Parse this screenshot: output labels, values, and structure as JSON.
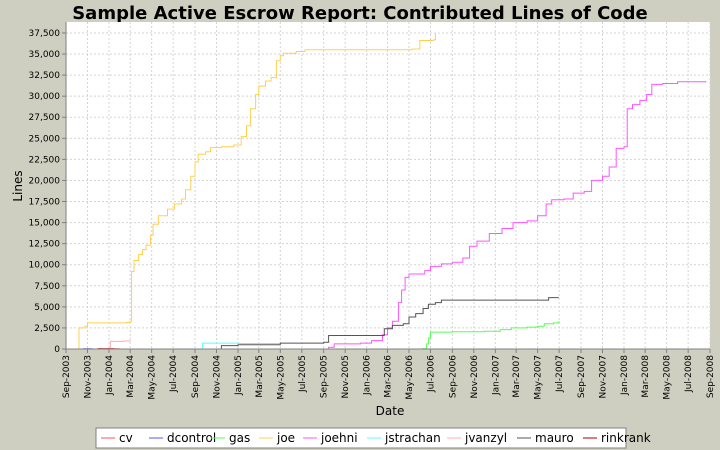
{
  "chart_data": {
    "type": "line",
    "title": "Sample Active Escrow Report: Contributed Lines of Code",
    "xlabel": "Date",
    "ylabel": "Lines",
    "xlim": [
      "2003-09-01",
      "2008-09-01"
    ],
    "ylim": [
      0,
      38800
    ],
    "grid": true,
    "legend_position": "bottom",
    "x_ticks": [
      "2003-09-01",
      "2003-11-01",
      "2004-01-01",
      "2004-03-01",
      "2004-05-01",
      "2004-07-01",
      "2004-09-01",
      "2004-11-01",
      "2005-01-01",
      "2005-03-01",
      "2005-05-01",
      "2005-07-01",
      "2005-09-01",
      "2005-11-01",
      "2006-01-01",
      "2006-03-01",
      "2006-05-01",
      "2006-07-01",
      "2006-09-01",
      "2006-11-01",
      "2007-01-01",
      "2007-03-01",
      "2007-05-01",
      "2007-07-01",
      "2007-09-01",
      "2007-11-01",
      "2008-01-01",
      "2008-03-01",
      "2008-05-01",
      "2008-07-01",
      "2008-09-01"
    ],
    "x_tick_labels": [
      "Sep-2003",
      "Nov-2003",
      "Jan-2004",
      "Mar-2004",
      "May-2004",
      "Jul-2004",
      "Sep-2004",
      "Nov-2004",
      "Jan-2005",
      "Mar-2005",
      "May-2005",
      "Jul-2005",
      "Sep-2005",
      "Nov-2005",
      "Jan-2006",
      "Mar-2006",
      "May-2006",
      "Jul-2006",
      "Sep-2006",
      "Nov-2006",
      "Jan-2007",
      "Mar-2007",
      "May-2007",
      "Jul-2007",
      "Sep-2007",
      "Nov-2007",
      "Jan-2008",
      "Mar-2008",
      "May-2008",
      "Jul-2008",
      "Sep-2008"
    ],
    "y_ticks": [
      0,
      2500,
      5000,
      7500,
      10000,
      12500,
      15000,
      17500,
      20000,
      22500,
      25000,
      27500,
      30000,
      32500,
      35000,
      37500
    ],
    "y_tick_labels": [
      "0",
      "2,500",
      "5,000",
      "7,500",
      "10,000",
      "12,500",
      "15,000",
      "17,500",
      "20,000",
      "22,500",
      "25,000",
      "27,500",
      "30,000",
      "32,500",
      "35,000",
      "37,500"
    ],
    "series": [
      {
        "name": "cv",
        "color": "#ff5555",
        "points": [
          [
            "2003-10-05",
            0
          ],
          [
            "2003-12-01",
            30
          ],
          [
            "2004-02-01",
            60
          ]
        ]
      },
      {
        "name": "dcontrol",
        "color": "#5555ff",
        "points": [
          [
            "2003-10-10",
            0
          ],
          [
            "2003-10-20",
            20
          ],
          [
            "2003-11-15",
            40
          ]
        ]
      },
      {
        "name": "gas",
        "color": "#55ff55",
        "points": [
          [
            "2006-04-20",
            0
          ],
          [
            "2006-06-10",
            50
          ],
          [
            "2006-06-20",
            600
          ],
          [
            "2006-06-25",
            1300
          ],
          [
            "2006-07-01",
            2000
          ],
          [
            "2006-09-01",
            2050
          ],
          [
            "2006-12-01",
            2100
          ],
          [
            "2007-01-15",
            2300
          ],
          [
            "2007-02-15",
            2500
          ],
          [
            "2007-04-01",
            2600
          ],
          [
            "2007-05-01",
            2700
          ],
          [
            "2007-05-20",
            3000
          ],
          [
            "2007-06-15",
            3100
          ],
          [
            "2007-07-01",
            3300
          ]
        ]
      },
      {
        "name": "joe",
        "color": "#ffd050",
        "points": [
          [
            "2003-10-01",
            0
          ],
          [
            "2003-10-08",
            2500
          ],
          [
            "2003-10-25",
            2700
          ],
          [
            "2003-11-01",
            3100
          ],
          [
            "2003-12-15",
            3100
          ],
          [
            "2004-02-20",
            3150
          ],
          [
            "2004-03-01",
            3300
          ],
          [
            "2004-03-05",
            9200
          ],
          [
            "2004-03-12",
            10500
          ],
          [
            "2004-03-25",
            11200
          ],
          [
            "2004-04-05",
            11800
          ],
          [
            "2004-04-15",
            12300
          ],
          [
            "2004-04-28",
            13500
          ],
          [
            "2004-05-05",
            14800
          ],
          [
            "2004-05-20",
            15800
          ],
          [
            "2004-06-15",
            16600
          ],
          [
            "2004-07-05",
            17200
          ],
          [
            "2004-07-25",
            17800
          ],
          [
            "2004-08-05",
            18900
          ],
          [
            "2004-08-20",
            20500
          ],
          [
            "2004-09-01",
            22200
          ],
          [
            "2004-09-10",
            23100
          ],
          [
            "2004-10-01",
            23400
          ],
          [
            "2004-10-15",
            23900
          ],
          [
            "2004-11-15",
            24000
          ],
          [
            "2004-12-20",
            24200
          ],
          [
            "2005-01-10",
            25200
          ],
          [
            "2005-01-25",
            26500
          ],
          [
            "2005-02-05",
            28500
          ],
          [
            "2005-02-20",
            30200
          ],
          [
            "2005-03-01",
            31200
          ],
          [
            "2005-03-20",
            31800
          ],
          [
            "2005-04-05",
            32200
          ],
          [
            "2005-04-20",
            34200
          ],
          [
            "2005-05-01",
            34800
          ],
          [
            "2005-05-10",
            35100
          ],
          [
            "2005-06-15",
            35300
          ],
          [
            "2005-07-10",
            35500
          ],
          [
            "2006-05-10",
            35600
          ],
          [
            "2006-06-01",
            36600
          ],
          [
            "2006-07-10",
            36700
          ],
          [
            "2006-07-15",
            37500
          ]
        ]
      },
      {
        "name": "joehni",
        "color": "#ff55ff",
        "points": [
          [
            "2005-08-20",
            0
          ],
          [
            "2005-09-15",
            200
          ],
          [
            "2005-10-01",
            600
          ],
          [
            "2005-12-15",
            700
          ],
          [
            "2006-01-15",
            1000
          ],
          [
            "2006-02-15",
            1700
          ],
          [
            "2006-03-01",
            2500
          ],
          [
            "2006-03-15",
            3300
          ],
          [
            "2006-04-01",
            5500
          ],
          [
            "2006-04-10",
            7000
          ],
          [
            "2006-04-20",
            8500
          ],
          [
            "2006-05-01",
            8900
          ],
          [
            "2006-06-15",
            9300
          ],
          [
            "2006-07-01",
            9800
          ],
          [
            "2006-08-01",
            10100
          ],
          [
            "2006-09-01",
            10300
          ],
          [
            "2006-10-01",
            10800
          ],
          [
            "2006-10-20",
            12200
          ],
          [
            "2006-11-10",
            12800
          ],
          [
            "2006-12-15",
            13700
          ],
          [
            "2007-01-20",
            14300
          ],
          [
            "2007-02-20",
            15000
          ],
          [
            "2007-04-01",
            15200
          ],
          [
            "2007-05-01",
            15800
          ],
          [
            "2007-05-25",
            17200
          ],
          [
            "2007-06-10",
            17700
          ],
          [
            "2007-07-15",
            17800
          ],
          [
            "2007-08-10",
            18500
          ],
          [
            "2007-09-10",
            18700
          ],
          [
            "2007-10-01",
            20000
          ],
          [
            "2007-11-01",
            20500
          ],
          [
            "2007-11-20",
            21600
          ],
          [
            "2007-12-10",
            23800
          ],
          [
            "2008-01-01",
            24000
          ],
          [
            "2008-01-10",
            28500
          ],
          [
            "2008-01-25",
            29000
          ],
          [
            "2008-02-15",
            29500
          ],
          [
            "2008-03-05",
            30200
          ],
          [
            "2008-03-20",
            31400
          ],
          [
            "2008-04-20",
            31500
          ],
          [
            "2008-06-01",
            31700
          ],
          [
            "2008-08-20",
            31800
          ]
        ]
      },
      {
        "name": "jstrachan",
        "color": "#55ffff",
        "points": [
          [
            "2004-09-15",
            0
          ],
          [
            "2004-09-22",
            700
          ],
          [
            "2004-11-01",
            700
          ],
          [
            "2005-01-01",
            650
          ],
          [
            "2005-05-01",
            600
          ]
        ]
      },
      {
        "name": "jvanzyl",
        "color": "#ffafaf",
        "points": [
          [
            "2003-12-15",
            0
          ],
          [
            "2004-01-05",
            900
          ],
          [
            "2004-02-10",
            950
          ],
          [
            "2004-03-01",
            1050
          ]
        ]
      },
      {
        "name": "mauro",
        "color": "#555555",
        "points": [
          [
            "2004-11-01",
            0
          ],
          [
            "2004-11-15",
            400
          ],
          [
            "2005-01-01",
            500
          ],
          [
            "2005-05-01",
            700
          ],
          [
            "2005-09-01",
            800
          ],
          [
            "2005-09-15",
            1600
          ],
          [
            "2006-02-10",
            1600
          ],
          [
            "2006-02-20",
            2400
          ],
          [
            "2006-03-15",
            2800
          ],
          [
            "2006-04-15",
            3000
          ],
          [
            "2006-05-01",
            3800
          ],
          [
            "2006-05-20",
            4200
          ],
          [
            "2006-06-10",
            4800
          ],
          [
            "2006-06-25",
            5300
          ],
          [
            "2006-07-15",
            5500
          ],
          [
            "2006-08-01",
            5800
          ],
          [
            "2006-12-01",
            5800
          ],
          [
            "2007-05-01",
            5800
          ],
          [
            "2007-06-01",
            6100
          ],
          [
            "2007-06-30",
            6100
          ]
        ]
      },
      {
        "name": "rinkrank",
        "color": "#aa0000",
        "points": [
          [
            "2003-10-15",
            0
          ],
          [
            "2003-12-01",
            40
          ],
          [
            "2004-01-15",
            60
          ]
        ]
      }
    ]
  }
}
